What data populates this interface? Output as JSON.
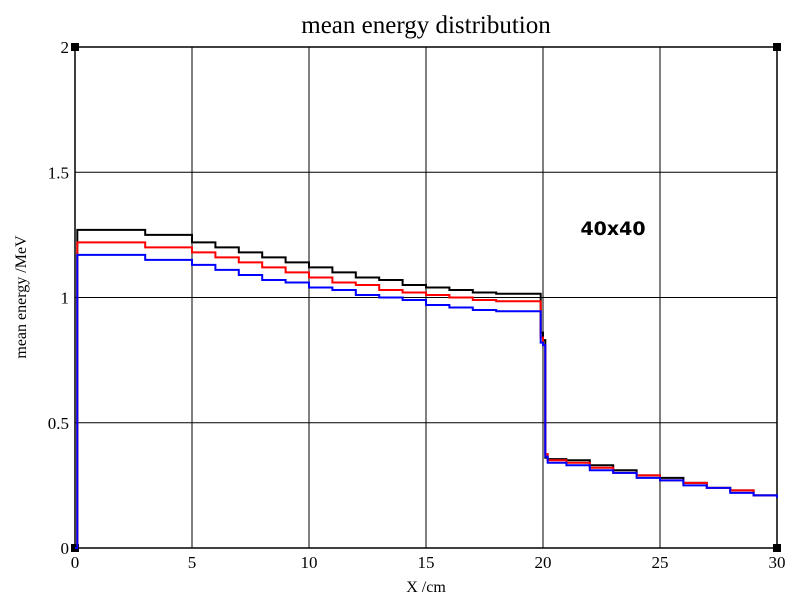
{
  "chart_data": {
    "type": "line",
    "title": "mean energy distribution",
    "xlabel": "X /cm",
    "ylabel": "mean energy /MeV",
    "xlim": [
      0,
      30
    ],
    "ylim": [
      0,
      2
    ],
    "xticks": [
      "0",
      "5",
      "10",
      "15",
      "20",
      "25",
      "30"
    ],
    "yticks": [
      "0",
      "0.5",
      "1",
      "1.5",
      "2"
    ],
    "grid": true,
    "step": true,
    "annotations": [
      {
        "text": "40x40",
        "x": 21.6,
        "y": 1.25
      }
    ],
    "series": [
      {
        "color": "#000000",
        "x": [
          0,
          0.1,
          3,
          5,
          6,
          7,
          8,
          9,
          10,
          11,
          12,
          13,
          14,
          15,
          16,
          17,
          18,
          19,
          19.9,
          20.0,
          20.1,
          20.2,
          21,
          22,
          23,
          24,
          25,
          26,
          27,
          28,
          29,
          30
        ],
        "y": [
          0,
          1.27,
          1.25,
          1.22,
          1.2,
          1.18,
          1.16,
          1.14,
          1.12,
          1.1,
          1.08,
          1.07,
          1.05,
          1.04,
          1.03,
          1.02,
          1.015,
          1.015,
          0.86,
          0.83,
          0.36,
          0.355,
          0.35,
          0.33,
          0.31,
          0.29,
          0.28,
          0.26,
          0.24,
          0.23,
          0.21,
          0.2
        ]
      },
      {
        "color": "#ff0000",
        "x": [
          0,
          0.1,
          3,
          5,
          6,
          7,
          8,
          9,
          10,
          11,
          12,
          13,
          14,
          15,
          16,
          17,
          18,
          19,
          19.9,
          20.0,
          20.1,
          20.2,
          21,
          22,
          23,
          24,
          25,
          26,
          27,
          28,
          29,
          30
        ],
        "y": [
          0,
          1.22,
          1.2,
          1.18,
          1.16,
          1.14,
          1.12,
          1.1,
          1.08,
          1.06,
          1.05,
          1.03,
          1.02,
          1.01,
          1.0,
          0.99,
          0.985,
          0.985,
          0.84,
          0.81,
          0.375,
          0.35,
          0.34,
          0.32,
          0.3,
          0.29,
          0.27,
          0.26,
          0.24,
          0.23,
          0.21,
          0.2
        ]
      },
      {
        "color": "#0000ff",
        "x": [
          0,
          0.1,
          3,
          5,
          6,
          7,
          8,
          9,
          10,
          11,
          12,
          13,
          14,
          15,
          16,
          17,
          18,
          19,
          19.9,
          20.0,
          20.1,
          20.2,
          21,
          22,
          23,
          24,
          25,
          26,
          27,
          28,
          29,
          30
        ],
        "y": [
          0,
          1.17,
          1.15,
          1.13,
          1.11,
          1.09,
          1.07,
          1.06,
          1.04,
          1.03,
          1.01,
          1.0,
          0.99,
          0.97,
          0.96,
          0.95,
          0.945,
          0.945,
          0.82,
          0.81,
          0.365,
          0.34,
          0.33,
          0.31,
          0.3,
          0.28,
          0.27,
          0.25,
          0.24,
          0.22,
          0.21,
          0.2
        ]
      }
    ]
  }
}
